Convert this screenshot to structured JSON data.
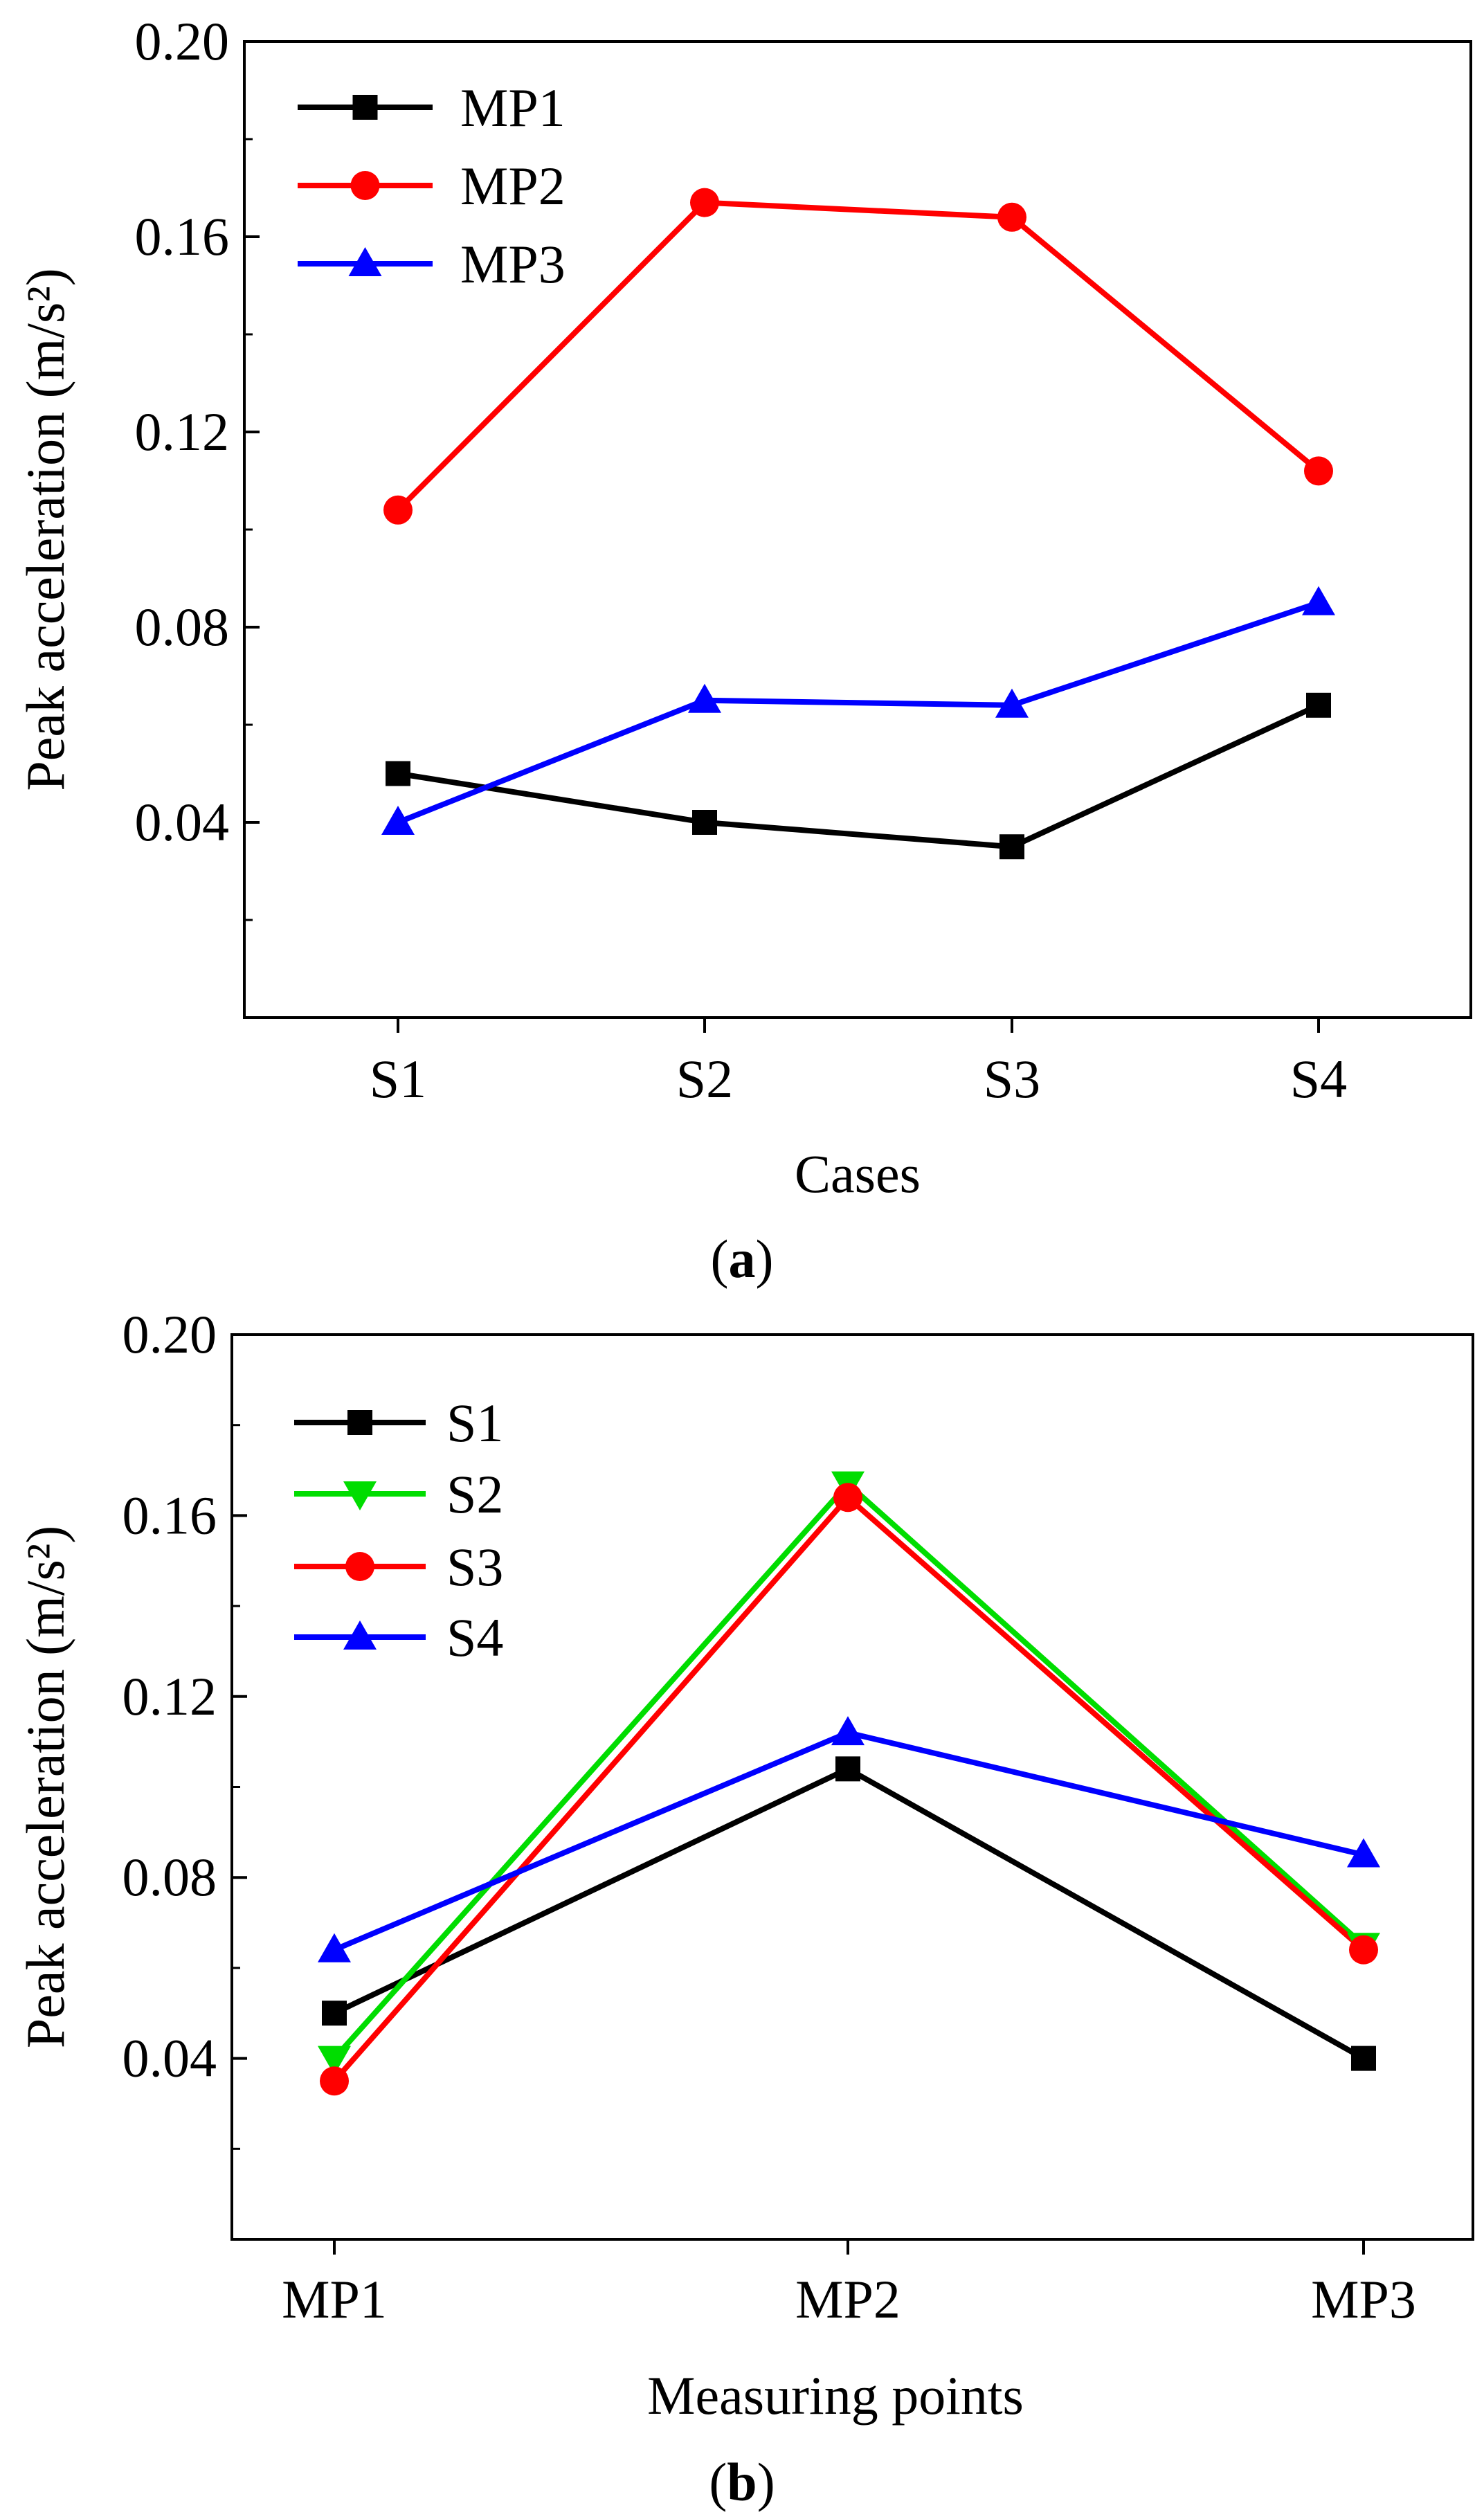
{
  "chart_data": [
    {
      "type": "line",
      "panel": "a",
      "panel_open": "(",
      "panel_close": ")",
      "xlabel": "Cases",
      "ylabel": "Peak acceleration (m/s²)",
      "ylim": [
        0.0,
        0.2
      ],
      "yticks": [
        0.04,
        0.08,
        0.12,
        0.16,
        0.2
      ],
      "ytick_labels": [
        "0.04",
        "0.08",
        "0.12",
        "0.16",
        "0.20"
      ],
      "categories": [
        "S1",
        "S2",
        "S3",
        "S4"
      ],
      "legend_position": "top-left",
      "grid": false,
      "series": [
        {
          "name": "MP1",
          "color": "#000000",
          "marker": "square",
          "values": [
            0.05,
            0.04,
            0.035,
            0.064
          ]
        },
        {
          "name": "MP2",
          "color": "#ff0000",
          "marker": "circle",
          "values": [
            0.104,
            0.167,
            0.164,
            0.112
          ]
        },
        {
          "name": "MP3",
          "color": "#0000ff",
          "marker": "triangle-up",
          "values": [
            0.04,
            0.065,
            0.064,
            0.085
          ]
        }
      ]
    },
    {
      "type": "line",
      "panel": "b",
      "panel_open": "(",
      "panel_close": ")",
      "xlabel": "Measuring points",
      "ylabel": "Peak acceleration (m/s²)",
      "ylim": [
        0.0,
        0.2
      ],
      "yticks": [
        0.04,
        0.08,
        0.12,
        0.16,
        0.2
      ],
      "ytick_labels": [
        "0.04",
        "0.08",
        "0.12",
        "0.16",
        "0.20"
      ],
      "categories": [
        "MP1",
        "MP2",
        "MP3"
      ],
      "legend_position": "top-left",
      "grid": false,
      "series": [
        {
          "name": "S1",
          "color": "#000000",
          "marker": "square",
          "values": [
            0.05,
            0.104,
            0.04
          ]
        },
        {
          "name": "S2",
          "color": "#00dd00",
          "marker": "triangle-down",
          "values": [
            0.04,
            0.167,
            0.065
          ]
        },
        {
          "name": "S3",
          "color": "#ff0000",
          "marker": "circle",
          "values": [
            0.035,
            0.164,
            0.064
          ]
        },
        {
          "name": "S4",
          "color": "#0000ff",
          "marker": "triangle-up",
          "values": [
            0.064,
            0.112,
            0.085
          ]
        }
      ]
    }
  ]
}
